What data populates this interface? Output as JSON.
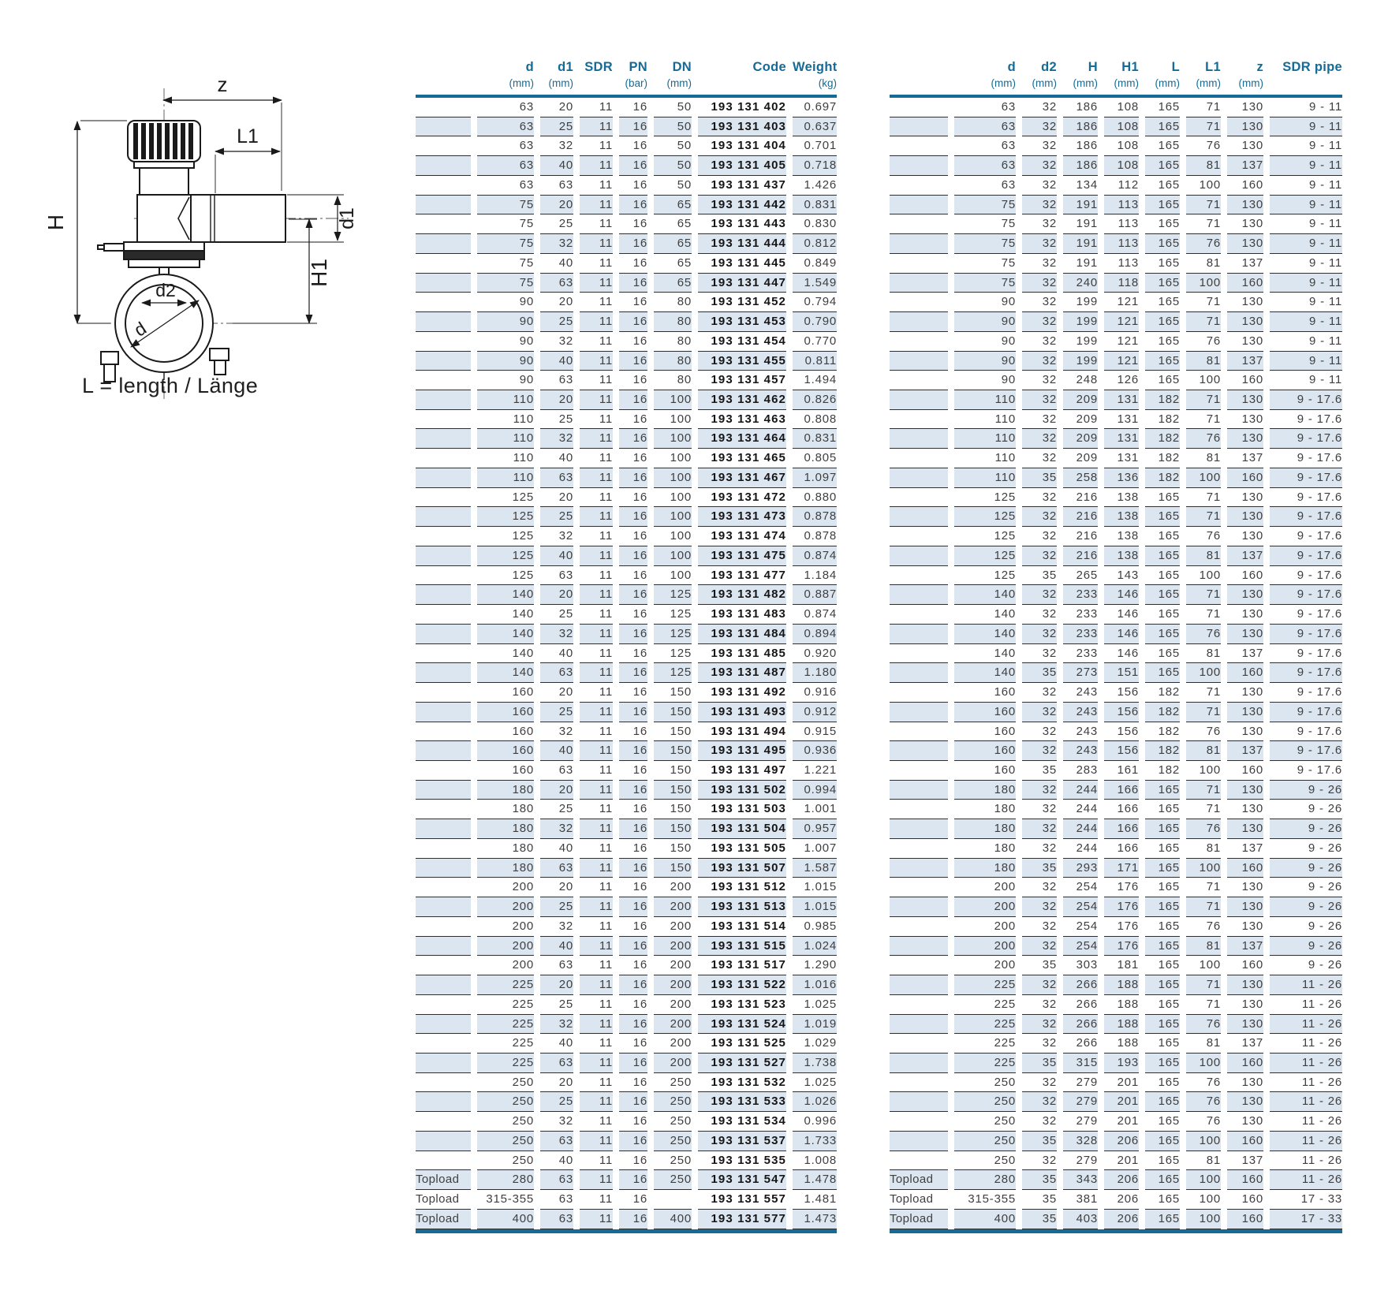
{
  "colors": {
    "accent": "#156b96",
    "stripe": "#dce6f1",
    "line": "#2e2e2e"
  },
  "diagram": {
    "caption": "L = length / Länge",
    "labels": {
      "z": "z",
      "L1": "L1",
      "d1": "d1",
      "H": "H",
      "H1": "H1",
      "d2": "d2",
      "d": "d"
    }
  },
  "left_table": {
    "columns": [
      {
        "label": "",
        "unit": ""
      },
      {
        "label": "d",
        "unit": "(mm)"
      },
      {
        "label": "d1",
        "unit": "(mm)"
      },
      {
        "label": "SDR",
        "unit": ""
      },
      {
        "label": "PN",
        "unit": "(bar)"
      },
      {
        "label": "DN",
        "unit": "(mm)"
      },
      {
        "label": "Code",
        "unit": ""
      },
      {
        "label": "Weight",
        "unit": "(kg)"
      }
    ],
    "rows": [
      [
        "",
        "63",
        "20",
        "11",
        "16",
        "50",
        "193 131 402",
        "0.697"
      ],
      [
        "",
        "63",
        "25",
        "11",
        "16",
        "50",
        "193 131 403",
        "0.637"
      ],
      [
        "",
        "63",
        "32",
        "11",
        "16",
        "50",
        "193 131 404",
        "0.701"
      ],
      [
        "",
        "63",
        "40",
        "11",
        "16",
        "50",
        "193 131 405",
        "0.718"
      ],
      [
        "",
        "63",
        "63",
        "11",
        "16",
        "50",
        "193 131 437",
        "1.426"
      ],
      [
        "",
        "75",
        "20",
        "11",
        "16",
        "65",
        "193 131 442",
        "0.831"
      ],
      [
        "",
        "75",
        "25",
        "11",
        "16",
        "65",
        "193 131 443",
        "0.830"
      ],
      [
        "",
        "75",
        "32",
        "11",
        "16",
        "65",
        "193 131 444",
        "0.812"
      ],
      [
        "",
        "75",
        "40",
        "11",
        "16",
        "65",
        "193 131 445",
        "0.849"
      ],
      [
        "",
        "75",
        "63",
        "11",
        "16",
        "65",
        "193 131 447",
        "1.549"
      ],
      [
        "",
        "90",
        "20",
        "11",
        "16",
        "80",
        "193 131 452",
        "0.794"
      ],
      [
        "",
        "90",
        "25",
        "11",
        "16",
        "80",
        "193 131 453",
        "0.790"
      ],
      [
        "",
        "90",
        "32",
        "11",
        "16",
        "80",
        "193 131 454",
        "0.770"
      ],
      [
        "",
        "90",
        "40",
        "11",
        "16",
        "80",
        "193 131 455",
        "0.811"
      ],
      [
        "",
        "90",
        "63",
        "11",
        "16",
        "80",
        "193 131 457",
        "1.494"
      ],
      [
        "",
        "110",
        "20",
        "11",
        "16",
        "100",
        "193 131 462",
        "0.826"
      ],
      [
        "",
        "110",
        "25",
        "11",
        "16",
        "100",
        "193 131 463",
        "0.808"
      ],
      [
        "",
        "110",
        "32",
        "11",
        "16",
        "100",
        "193 131 464",
        "0.831"
      ],
      [
        "",
        "110",
        "40",
        "11",
        "16",
        "100",
        "193 131 465",
        "0.805"
      ],
      [
        "",
        "110",
        "63",
        "11",
        "16",
        "100",
        "193 131 467",
        "1.097"
      ],
      [
        "",
        "125",
        "20",
        "11",
        "16",
        "100",
        "193 131 472",
        "0.880"
      ],
      [
        "",
        "125",
        "25",
        "11",
        "16",
        "100",
        "193 131 473",
        "0.878"
      ],
      [
        "",
        "125",
        "32",
        "11",
        "16",
        "100",
        "193 131 474",
        "0.878"
      ],
      [
        "",
        "125",
        "40",
        "11",
        "16",
        "100",
        "193 131 475",
        "0.874"
      ],
      [
        "",
        "125",
        "63",
        "11",
        "16",
        "100",
        "193 131 477",
        "1.184"
      ],
      [
        "",
        "140",
        "20",
        "11",
        "16",
        "125",
        "193 131 482",
        "0.887"
      ],
      [
        "",
        "140",
        "25",
        "11",
        "16",
        "125",
        "193 131 483",
        "0.874"
      ],
      [
        "",
        "140",
        "32",
        "11",
        "16",
        "125",
        "193 131 484",
        "0.894"
      ],
      [
        "",
        "140",
        "40",
        "11",
        "16",
        "125",
        "193 131 485",
        "0.920"
      ],
      [
        "",
        "140",
        "63",
        "11",
        "16",
        "125",
        "193 131 487",
        "1.180"
      ],
      [
        "",
        "160",
        "20",
        "11",
        "16",
        "150",
        "193 131 492",
        "0.916"
      ],
      [
        "",
        "160",
        "25",
        "11",
        "16",
        "150",
        "193 131 493",
        "0.912"
      ],
      [
        "",
        "160",
        "32",
        "11",
        "16",
        "150",
        "193 131 494",
        "0.915"
      ],
      [
        "",
        "160",
        "40",
        "11",
        "16",
        "150",
        "193 131 495",
        "0.936"
      ],
      [
        "",
        "160",
        "63",
        "11",
        "16",
        "150",
        "193 131 497",
        "1.221"
      ],
      [
        "",
        "180",
        "20",
        "11",
        "16",
        "150",
        "193 131 502",
        "0.994"
      ],
      [
        "",
        "180",
        "25",
        "11",
        "16",
        "150",
        "193 131 503",
        "1.001"
      ],
      [
        "",
        "180",
        "32",
        "11",
        "16",
        "150",
        "193 131 504",
        "0.957"
      ],
      [
        "",
        "180",
        "40",
        "11",
        "16",
        "150",
        "193 131 505",
        "1.007"
      ],
      [
        "",
        "180",
        "63",
        "11",
        "16",
        "150",
        "193 131 507",
        "1.587"
      ],
      [
        "",
        "200",
        "20",
        "11",
        "16",
        "200",
        "193 131 512",
        "1.015"
      ],
      [
        "",
        "200",
        "25",
        "11",
        "16",
        "200",
        "193 131 513",
        "1.015"
      ],
      [
        "",
        "200",
        "32",
        "11",
        "16",
        "200",
        "193 131 514",
        "0.985"
      ],
      [
        "",
        "200",
        "40",
        "11",
        "16",
        "200",
        "193 131 515",
        "1.024"
      ],
      [
        "",
        "200",
        "63",
        "11",
        "16",
        "200",
        "193 131 517",
        "1.290"
      ],
      [
        "",
        "225",
        "20",
        "11",
        "16",
        "200",
        "193 131 522",
        "1.016"
      ],
      [
        "",
        "225",
        "25",
        "11",
        "16",
        "200",
        "193 131 523",
        "1.025"
      ],
      [
        "",
        "225",
        "32",
        "11",
        "16",
        "200",
        "193 131 524",
        "1.019"
      ],
      [
        "",
        "225",
        "40",
        "11",
        "16",
        "200",
        "193 131 525",
        "1.029"
      ],
      [
        "",
        "225",
        "63",
        "11",
        "16",
        "200",
        "193 131 527",
        "1.738"
      ],
      [
        "",
        "250",
        "20",
        "11",
        "16",
        "250",
        "193 131 532",
        "1.025"
      ],
      [
        "",
        "250",
        "25",
        "11",
        "16",
        "250",
        "193 131 533",
        "1.026"
      ],
      [
        "",
        "250",
        "32",
        "11",
        "16",
        "250",
        "193 131 534",
        "0.996"
      ],
      [
        "",
        "250",
        "63",
        "11",
        "16",
        "250",
        "193 131 537",
        "1.733"
      ],
      [
        "",
        "250",
        "40",
        "11",
        "16",
        "250",
        "193 131 535",
        "1.008"
      ],
      [
        "Topload",
        "280",
        "63",
        "11",
        "16",
        "250",
        "193 131 547",
        "1.478"
      ],
      [
        "Topload",
        "315-355",
        "63",
        "11",
        "16",
        "",
        "193 131 557",
        "1.481"
      ],
      [
        "Topload",
        "400",
        "63",
        "11",
        "16",
        "400",
        "193 131 577",
        "1.473"
      ]
    ]
  },
  "right_table": {
    "columns": [
      {
        "label": "",
        "unit": ""
      },
      {
        "label": "d",
        "unit": "(mm)"
      },
      {
        "label": "d2",
        "unit": "(mm)"
      },
      {
        "label": "H",
        "unit": "(mm)"
      },
      {
        "label": "H1",
        "unit": "(mm)"
      },
      {
        "label": "L",
        "unit": "(mm)"
      },
      {
        "label": "L1",
        "unit": "(mm)"
      },
      {
        "label": "z",
        "unit": "(mm)"
      },
      {
        "label": "SDR pipe",
        "unit": ""
      }
    ],
    "rows": [
      [
        "",
        "63",
        "32",
        "186",
        "108",
        "165",
        "71",
        "130",
        "9 - 11"
      ],
      [
        "",
        "63",
        "32",
        "186",
        "108",
        "165",
        "71",
        "130",
        "9 - 11"
      ],
      [
        "",
        "63",
        "32",
        "186",
        "108",
        "165",
        "76",
        "130",
        "9 - 11"
      ],
      [
        "",
        "63",
        "32",
        "186",
        "108",
        "165",
        "81",
        "137",
        "9 - 11"
      ],
      [
        "",
        "63",
        "32",
        "134",
        "112",
        "165",
        "100",
        "160",
        "9 - 11"
      ],
      [
        "",
        "75",
        "32",
        "191",
        "113",
        "165",
        "71",
        "130",
        "9 - 11"
      ],
      [
        "",
        "75",
        "32",
        "191",
        "113",
        "165",
        "71",
        "130",
        "9 - 11"
      ],
      [
        "",
        "75",
        "32",
        "191",
        "113",
        "165",
        "76",
        "130",
        "9 - 11"
      ],
      [
        "",
        "75",
        "32",
        "191",
        "113",
        "165",
        "81",
        "137",
        "9 - 11"
      ],
      [
        "",
        "75",
        "32",
        "240",
        "118",
        "165",
        "100",
        "160",
        "9 - 11"
      ],
      [
        "",
        "90",
        "32",
        "199",
        "121",
        "165",
        "71",
        "130",
        "9 - 11"
      ],
      [
        "",
        "90",
        "32",
        "199",
        "121",
        "165",
        "71",
        "130",
        "9 - 11"
      ],
      [
        "",
        "90",
        "32",
        "199",
        "121",
        "165",
        "76",
        "130",
        "9 - 11"
      ],
      [
        "",
        "90",
        "32",
        "199",
        "121",
        "165",
        "81",
        "137",
        "9 - 11"
      ],
      [
        "",
        "90",
        "32",
        "248",
        "126",
        "165",
        "100",
        "160",
        "9 - 11"
      ],
      [
        "",
        "110",
        "32",
        "209",
        "131",
        "182",
        "71",
        "130",
        "9 - 17.6"
      ],
      [
        "",
        "110",
        "32",
        "209",
        "131",
        "182",
        "71",
        "130",
        "9 - 17.6"
      ],
      [
        "",
        "110",
        "32",
        "209",
        "131",
        "182",
        "76",
        "130",
        "9 - 17.6"
      ],
      [
        "",
        "110",
        "32",
        "209",
        "131",
        "182",
        "81",
        "137",
        "9 - 17.6"
      ],
      [
        "",
        "110",
        "35",
        "258",
        "136",
        "182",
        "100",
        "160",
        "9 - 17.6"
      ],
      [
        "",
        "125",
        "32",
        "216",
        "138",
        "165",
        "71",
        "130",
        "9 - 17.6"
      ],
      [
        "",
        "125",
        "32",
        "216",
        "138",
        "165",
        "71",
        "130",
        "9 - 17.6"
      ],
      [
        "",
        "125",
        "32",
        "216",
        "138",
        "165",
        "76",
        "130",
        "9 - 17.6"
      ],
      [
        "",
        "125",
        "32",
        "216",
        "138",
        "165",
        "81",
        "137",
        "9 - 17.6"
      ],
      [
        "",
        "125",
        "35",
        "265",
        "143",
        "165",
        "100",
        "160",
        "9 - 17.6"
      ],
      [
        "",
        "140",
        "32",
        "233",
        "146",
        "165",
        "71",
        "130",
        "9 - 17.6"
      ],
      [
        "",
        "140",
        "32",
        "233",
        "146",
        "165",
        "71",
        "130",
        "9 - 17.6"
      ],
      [
        "",
        "140",
        "32",
        "233",
        "146",
        "165",
        "76",
        "130",
        "9 - 17.6"
      ],
      [
        "",
        "140",
        "32",
        "233",
        "146",
        "165",
        "81",
        "137",
        "9 - 17.6"
      ],
      [
        "",
        "140",
        "35",
        "273",
        "151",
        "165",
        "100",
        "160",
        "9 - 17.6"
      ],
      [
        "",
        "160",
        "32",
        "243",
        "156",
        "182",
        "71",
        "130",
        "9 - 17.6"
      ],
      [
        "",
        "160",
        "32",
        "243",
        "156",
        "182",
        "71",
        "130",
        "9 - 17.6"
      ],
      [
        "",
        "160",
        "32",
        "243",
        "156",
        "182",
        "76",
        "130",
        "9 - 17.6"
      ],
      [
        "",
        "160",
        "32",
        "243",
        "156",
        "182",
        "81",
        "137",
        "9 - 17.6"
      ],
      [
        "",
        "160",
        "35",
        "283",
        "161",
        "182",
        "100",
        "160",
        "9 - 17.6"
      ],
      [
        "",
        "180",
        "32",
        "244",
        "166",
        "165",
        "71",
        "130",
        "9 - 26"
      ],
      [
        "",
        "180",
        "32",
        "244",
        "166",
        "165",
        "71",
        "130",
        "9 - 26"
      ],
      [
        "",
        "180",
        "32",
        "244",
        "166",
        "165",
        "76",
        "130",
        "9 - 26"
      ],
      [
        "",
        "180",
        "32",
        "244",
        "166",
        "165",
        "81",
        "137",
        "9 - 26"
      ],
      [
        "",
        "180",
        "35",
        "293",
        "171",
        "165",
        "100",
        "160",
        "9 - 26"
      ],
      [
        "",
        "200",
        "32",
        "254",
        "176",
        "165",
        "71",
        "130",
        "9 - 26"
      ],
      [
        "",
        "200",
        "32",
        "254",
        "176",
        "165",
        "71",
        "130",
        "9 - 26"
      ],
      [
        "",
        "200",
        "32",
        "254",
        "176",
        "165",
        "76",
        "130",
        "9 - 26"
      ],
      [
        "",
        "200",
        "32",
        "254",
        "176",
        "165",
        "81",
        "137",
        "9 - 26"
      ],
      [
        "",
        "200",
        "35",
        "303",
        "181",
        "165",
        "100",
        "160",
        "9 - 26"
      ],
      [
        "",
        "225",
        "32",
        "266",
        "188",
        "165",
        "71",
        "130",
        "11 - 26"
      ],
      [
        "",
        "225",
        "32",
        "266",
        "188",
        "165",
        "71",
        "130",
        "11 - 26"
      ],
      [
        "",
        "225",
        "32",
        "266",
        "188",
        "165",
        "76",
        "130",
        "11 - 26"
      ],
      [
        "",
        "225",
        "32",
        "266",
        "188",
        "165",
        "81",
        "137",
        "11 - 26"
      ],
      [
        "",
        "225",
        "35",
        "315",
        "193",
        "165",
        "100",
        "160",
        "11 - 26"
      ],
      [
        "",
        "250",
        "32",
        "279",
        "201",
        "165",
        "76",
        "130",
        "11 - 26"
      ],
      [
        "",
        "250",
        "32",
        "279",
        "201",
        "165",
        "76",
        "130",
        "11 - 26"
      ],
      [
        "",
        "250",
        "32",
        "279",
        "201",
        "165",
        "76",
        "130",
        "11 - 26"
      ],
      [
        "",
        "250",
        "35",
        "328",
        "206",
        "165",
        "100",
        "160",
        "11 - 26"
      ],
      [
        "",
        "250",
        "32",
        "279",
        "201",
        "165",
        "81",
        "137",
        "11 - 26"
      ],
      [
        "Topload",
        "280",
        "35",
        "343",
        "206",
        "165",
        "100",
        "160",
        "11 - 26"
      ],
      [
        "Topload",
        "315-355",
        "35",
        "381",
        "206",
        "165",
        "100",
        "160",
        "17 - 33"
      ],
      [
        "Topload",
        "400",
        "35",
        "403",
        "206",
        "165",
        "100",
        "160",
        "17 - 33"
      ]
    ]
  }
}
